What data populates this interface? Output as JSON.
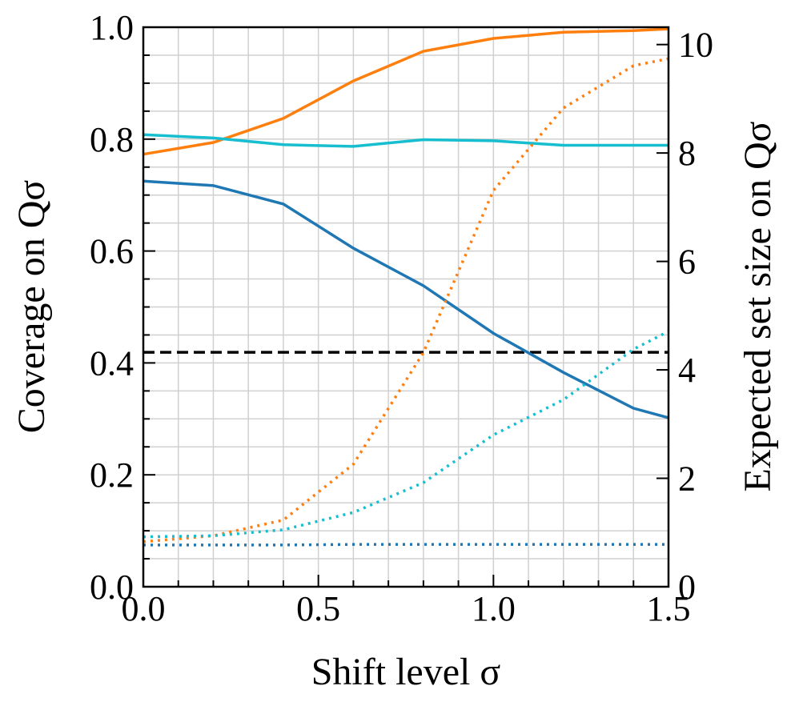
{
  "chart_data": {
    "type": "line",
    "xlabel": "Shift level σ",
    "ylabel": "Coverage on Qσ",
    "y2label": "Expected set size on Qσ",
    "x": [
      0,
      0.2,
      0.4,
      0.6,
      0.8,
      1.0,
      1.2,
      1.4,
      1.5
    ],
    "series": [
      {
        "color": "#ff7f0e",
        "style": "solid",
        "values": [
          0.773,
          0.794,
          0.837,
          0.904,
          0.957,
          0.98,
          0.991,
          0.994,
          0.997
        ]
      },
      {
        "color": "#17becf",
        "style": "solid",
        "values": [
          0.808,
          0.802,
          0.79,
          0.787,
          0.799,
          0.797,
          0.789,
          0.789,
          0.789
        ]
      },
      {
        "color": "#1f77b4",
        "style": "solid",
        "values": [
          0.725,
          0.717,
          0.684,
          0.605,
          0.538,
          0.453,
          0.383,
          0.319,
          0.302
        ]
      },
      {
        "color": "#ff7f0e",
        "style": "dotted",
        "axis": "y2",
        "values": [
          0.83,
          0.94,
          1.23,
          2.26,
          4.32,
          7.31,
          8.83,
          9.61,
          9.74
        ]
      },
      {
        "color": "#17becf",
        "style": "dotted",
        "axis": "y2",
        "values": [
          0.92,
          0.94,
          1.05,
          1.37,
          1.92,
          2.8,
          3.45,
          4.38,
          4.71
        ]
      },
      {
        "color": "#1f77b4",
        "style": "dotted",
        "axis": "y2",
        "values": [
          0.77,
          0.77,
          0.77,
          0.78,
          0.78,
          0.78,
          0.78,
          0.78,
          0.78
        ]
      }
    ],
    "hline": {
      "value": 0.419,
      "color": "#000000",
      "style": "dashed"
    },
    "xlim": [
      0,
      1.5
    ],
    "xticks": [
      {
        "value": 0,
        "label": "0.0"
      },
      0.5,
      {
        "value": 1,
        "label": "1.0"
      },
      1.5
    ],
    "minor_xticks": [
      0.1,
      0.2,
      0.3,
      0.4,
      0.6,
      0.7,
      0.8,
      0.9,
      1.1,
      1.2,
      1.3,
      1.4
    ],
    "ylim": [
      0,
      1
    ],
    "yticks": [
      {
        "value": 0,
        "label": "0.0"
      },
      0.2,
      0.4,
      0.6,
      0.8,
      {
        "value": 1,
        "label": "1.0"
      }
    ],
    "minor_yticks": [
      0.05,
      0.1,
      0.15,
      0.25,
      0.3,
      0.35,
      0.45,
      0.5,
      0.55,
      0.65,
      0.7,
      0.75,
      0.85,
      0.9,
      0.95
    ],
    "y2lim": [
      0,
      10.32
    ],
    "y2ticks": [
      0,
      2,
      4,
      6,
      8,
      10
    ],
    "grid": true
  }
}
